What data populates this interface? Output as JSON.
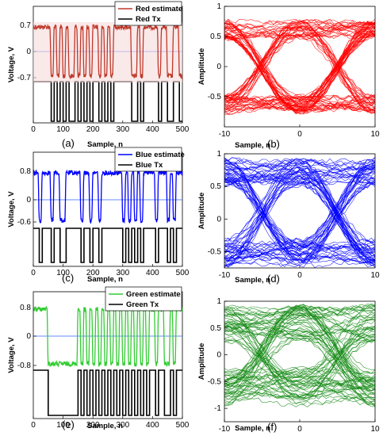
{
  "chart_data": [
    {
      "type": "line",
      "panel": "(a)",
      "color": "#c0392b",
      "xlabel": "Sample, n",
      "ylabel": "Voltage, V",
      "xlim": [
        0,
        500
      ],
      "x_ticks": [
        "0",
        "100",
        "200",
        "300",
        "400",
        "500"
      ],
      "y_ticks": [
        "0.7",
        "0",
        "-0.7"
      ],
      "legend": [
        "Red estimate",
        "Red Tx"
      ],
      "bits": [
        1,
        1,
        1,
        1,
        1,
        1,
        0,
        1,
        0,
        1,
        0,
        1,
        0,
        0,
        1,
        0,
        1,
        0,
        1,
        0,
        1,
        1,
        0,
        1,
        0,
        1,
        0,
        1,
        1,
        1,
        1,
        1,
        1,
        0,
        0,
        1,
        0,
        1,
        1,
        1,
        1,
        1,
        0,
        1,
        1,
        0,
        0,
        1,
        1,
        0
      ]
    },
    {
      "type": "line",
      "panel": "(c)",
      "color": "#0000ff",
      "xlabel": "Sample, n",
      "ylabel": "Voltage, V",
      "xlim": [
        0,
        500
      ],
      "x_ticks": [
        "0",
        "100",
        "200",
        "300",
        "400",
        "500"
      ],
      "y_ticks": [
        "0.8",
        "0",
        "-0.6"
      ],
      "legend": [
        "Blue estimate",
        "Blue Tx"
      ],
      "bits": [
        1,
        1,
        0,
        1,
        1,
        1,
        0,
        1,
        1,
        0,
        0,
        1,
        1,
        1,
        1,
        1,
        0,
        1,
        1,
        0,
        1,
        1,
        0,
        1,
        1,
        1,
        1,
        1,
        1,
        1,
        0,
        1,
        0,
        1,
        0,
        1,
        0,
        1,
        1,
        1,
        1,
        0,
        1,
        1,
        1,
        0,
        1,
        0,
        1,
        1
      ]
    },
    {
      "type": "line",
      "panel": "(e)",
      "color": "#33cc33",
      "xlabel": "Sample, n",
      "ylabel": "Voltage, V",
      "xlim": [
        0,
        500
      ],
      "x_ticks": [
        "0",
        "100",
        "200",
        "300",
        "400",
        "500"
      ],
      "y_ticks": [
        "0.8",
        "0",
        "-0.8"
      ],
      "legend": [
        "Green estimate",
        "Green Tx"
      ],
      "bits": [
        1,
        1,
        1,
        1,
        1,
        0,
        0,
        0,
        0,
        0,
        0,
        0,
        0,
        0,
        0,
        1,
        0,
        1,
        0,
        1,
        0,
        1,
        0,
        1,
        0,
        1,
        0,
        1,
        0,
        1,
        0,
        1,
        0,
        1,
        0,
        1,
        0,
        1,
        0,
        1,
        1,
        0,
        1,
        1,
        0,
        0,
        1,
        0,
        1,
        1
      ]
    },
    {
      "type": "line",
      "panel": "(b)",
      "subtype": "eye-diagram",
      "color": "#ff0000",
      "xlabel": "Sample, n",
      "ylabel": "Amplitude",
      "xlim": [
        -10,
        10
      ],
      "ylim": [
        -1,
        1
      ],
      "x_ticks": [
        "-10",
        "0",
        "10"
      ],
      "y_ticks": [
        "1",
        "0.5",
        "0",
        "-0.5"
      ]
    },
    {
      "type": "line",
      "panel": "(d)",
      "subtype": "eye-diagram",
      "color": "#0000ff",
      "xlabel": "Sample, n",
      "ylabel": "Amplitude",
      "xlim": [
        -10,
        10
      ],
      "ylim": [
        -0.75,
        1
      ],
      "x_ticks": [
        "-10",
        "0",
        "10"
      ],
      "y_ticks": [
        "1",
        "0.5",
        "0",
        "-0.5"
      ]
    },
    {
      "type": "line",
      "panel": "(f)",
      "subtype": "eye-diagram",
      "color": "#118811",
      "xlabel": "Sample, n",
      "ylabel": "Amplitude",
      "xlim": [
        -10,
        10
      ],
      "ylim": [
        -1.25,
        1
      ],
      "x_ticks": [
        "-10",
        "0",
        "10"
      ],
      "y_ticks": [
        "1",
        "0.5",
        "0",
        "-0.5",
        "-1"
      ]
    }
  ]
}
